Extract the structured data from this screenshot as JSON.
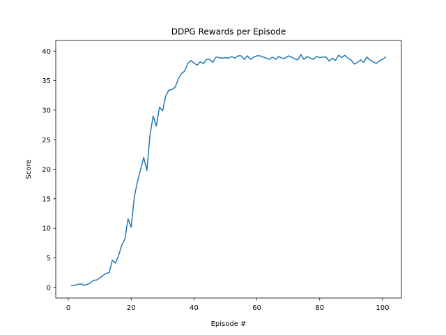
{
  "chart_data": {
    "type": "line",
    "title": "DDPG Rewards per Episode",
    "xlabel": "Episode #",
    "ylabel": "Score",
    "xlim": [
      -4,
      106
    ],
    "ylim": [
      -1.8,
      41.8
    ],
    "xticks": [
      0,
      20,
      40,
      60,
      80,
      100
    ],
    "yticks": [
      0,
      5,
      10,
      15,
      20,
      25,
      30,
      35,
      40
    ],
    "grid": false,
    "line_color": "#1f77b4",
    "x": [
      1,
      2,
      3,
      4,
      5,
      6,
      7,
      8,
      9,
      10,
      11,
      12,
      13,
      14,
      15,
      16,
      17,
      18,
      19,
      20,
      21,
      22,
      23,
      24,
      25,
      26,
      27,
      28,
      29,
      30,
      31,
      32,
      33,
      34,
      35,
      36,
      37,
      38,
      39,
      40,
      41,
      42,
      43,
      44,
      45,
      46,
      47,
      48,
      49,
      50,
      51,
      52,
      53,
      54,
      55,
      56,
      57,
      58,
      59,
      60,
      61,
      62,
      63,
      64,
      65,
      66,
      67,
      68,
      69,
      70,
      71,
      72,
      73,
      74,
      75,
      76,
      77,
      78,
      79,
      80,
      81,
      82,
      83,
      84,
      85,
      86,
      87,
      88,
      89,
      90,
      91,
      92,
      93,
      94,
      95,
      96,
      97,
      98,
      99,
      100,
      101
    ],
    "y": [
      0.3,
      0.35,
      0.5,
      0.6,
      0.35,
      0.5,
      0.75,
      1.2,
      1.25,
      1.6,
      2.0,
      2.35,
      2.5,
      4.6,
      4.1,
      5.4,
      7.1,
      8.2,
      11.6,
      10.2,
      15.3,
      17.9,
      20.0,
      22.0,
      19.8,
      25.8,
      29.0,
      27.3,
      30.5,
      29.9,
      32.4,
      33.4,
      33.5,
      33.9,
      35.3,
      36.2,
      36.6,
      37.9,
      38.4,
      38.0,
      37.6,
      38.2,
      37.9,
      38.6,
      38.6,
      38.1,
      39.0,
      38.9,
      38.8,
      38.9,
      38.8,
      39.1,
      38.8,
      39.2,
      39.2,
      38.6,
      39.2,
      38.6,
      39.0,
      39.2,
      39.2,
      39.0,
      38.8,
      38.6,
      39.0,
      38.6,
      39.1,
      38.8,
      38.8,
      39.2,
      39.0,
      38.7,
      38.5,
      39.4,
      38.6,
      39.1,
      38.8,
      38.6,
      39.1,
      38.9,
      39.0,
      39.0,
      38.3,
      38.8,
      38.4,
      39.3,
      38.9,
      39.3,
      38.8,
      38.5,
      37.8,
      38.1,
      38.5,
      38.1,
      39.0,
      38.5,
      38.2,
      37.9,
      38.4,
      38.6,
      39.0
    ]
  }
}
